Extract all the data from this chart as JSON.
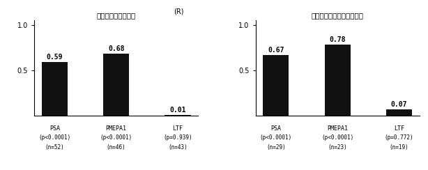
{
  "charts": [
    {
      "title": "融合転写産物（＋）",
      "values": [
        0.59,
        0.68,
        0.01
      ],
      "xlabels_line1": [
        "PSA",
        "PMEPA1",
        "LTF"
      ],
      "xlabels_line2": [
        "(p<0.0001)",
        "(p<0.0001)",
        "(p=0.939)"
      ],
      "xlabels_line3": [
        "(n=52)",
        "(n=46)",
        "(n=43)"
      ]
    },
    {
      "title": "高融合転写産物（＋＋＋）",
      "values": [
        0.67,
        0.78,
        0.07
      ],
      "xlabels_line1": [
        "PSA",
        "PMEPA1",
        "LTF"
      ],
      "xlabels_line2": [
        "(p<0.0001)",
        "(p<0.0001)",
        "(p=0.772)"
      ],
      "xlabels_line3": [
        "(n=29)",
        "(n=23)",
        "(n=19)"
      ]
    }
  ],
  "ylabel": "(R)",
  "ylim": [
    0,
    1.05
  ],
  "yticks": [
    0.5,
    1.0
  ],
  "ytick_labels": [
    "0.5",
    "1.0"
  ],
  "bar_color": "#111111",
  "bar_width": 0.42,
  "value_fontsize": 7,
  "label_fontsize": 6,
  "title_fontsize": 7.5,
  "ylabel_fontsize": 7,
  "background_color": "#ffffff"
}
